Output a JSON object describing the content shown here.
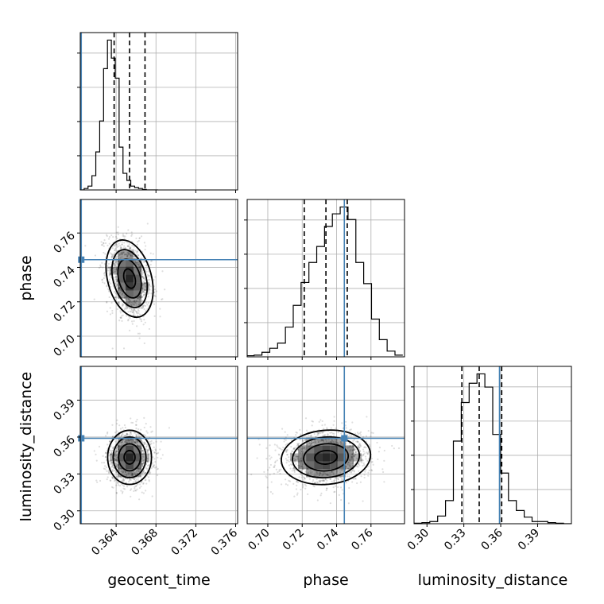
{
  "chart_data": {
    "type": "corner",
    "params": [
      "geocent_time",
      "phase",
      "luminosity_distance"
    ],
    "axis_labels": {
      "geocent_time": "geocent_time",
      "phase": "phase",
      "luminosity_distance": "luminosity_distance"
    },
    "ranges": {
      "geocent_time": [
        0.3604,
        0.3762
      ],
      "phase": [
        0.688,
        0.7795
      ],
      "luminosity_distance": [
        0.2895,
        0.4175
      ]
    },
    "ticks": {
      "geocent_time": [
        0.364,
        0.368,
        0.372,
        0.376
      ],
      "phase": [
        0.7,
        0.72,
        0.74,
        0.76
      ],
      "luminosity_distance": [
        0.3,
        0.33,
        0.36,
        0.39
      ]
    },
    "tick_labels": {
      "geocent_time": [
        "0.364",
        "0.368",
        "0.372",
        "0.376"
      ],
      "phase": [
        "0.70",
        "0.72",
        "0.74",
        "0.76"
      ],
      "luminosity_distance": [
        "0.30",
        "0.33",
        "0.36",
        "0.39"
      ]
    },
    "truths": {
      "geocent_time": 0.3605,
      "phase": 0.7445,
      "luminosity_distance": 0.359
    },
    "quantiles": {
      "geocent_time": [
        0.3638,
        0.36535,
        0.3669
      ],
      "phase": [
        0.7212,
        0.7338,
        0.7462
      ],
      "luminosity_distance": [
        0.3284,
        0.3425,
        0.3608
      ]
    },
    "histograms": {
      "geocent_time": {
        "bin_start": 0.3604,
        "bin_width": 0.00039,
        "counts": [
          0,
          3,
          8,
          30,
          80,
          145,
          255,
          315,
          277,
          235,
          90,
          35,
          20,
          8,
          5,
          3,
          1,
          0,
          0,
          0
        ]
      },
      "phase": {
        "bin_start": 0.6875,
        "bin_width": 0.00455,
        "counts": [
          2,
          3,
          8,
          15,
          24,
          52,
          90,
          130,
          165,
          193,
          228,
          250,
          262,
          240,
          165,
          128,
          66,
          30,
          10,
          3
        ]
      },
      "luminosity_distance": {
        "bin_start": 0.2895,
        "bin_width": 0.0064,
        "counts": [
          1,
          2,
          4,
          14,
          42,
          150,
          220,
          255,
          272,
          248,
          162,
          92,
          42,
          24,
          12,
          4,
          4,
          2,
          1,
          0
        ]
      }
    },
    "density_2d": {
      "geocent_time_vs_phase": {
        "mean": [
          0.36535,
          0.7335
        ],
        "sd": [
          0.0011,
          0.0115
        ],
        "rho": -0.3
      },
      "geocent_time_vs_luminosity_distance": {
        "mean": [
          0.36535,
          0.3435
        ],
        "sd": [
          0.0011,
          0.011
        ],
        "rho": 0.0
      },
      "phase_vs_luminosity_distance": {
        "mean": [
          0.7338,
          0.3435
        ],
        "sd": [
          0.013,
          0.011
        ],
        "rho": 0.1
      }
    },
    "contour_levels_sigma": [
      0.5,
      1.0,
      1.5,
      2.0
    ],
    "colors": {
      "truth": "#4682b4",
      "hist": "#000000",
      "quantile": "#000000",
      "grid": "#b0b0b0",
      "points": "#000000"
    },
    "grid": true
  }
}
